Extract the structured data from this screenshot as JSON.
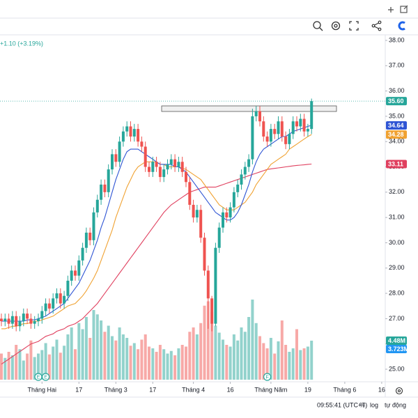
{
  "header": {
    "change": "+1.10 (+3.19%)"
  },
  "footer": {
    "time": "09:55:41 (UTC+7)",
    "percent": "%",
    "log": "log",
    "auto": "tự động"
  },
  "chart_data": {
    "type": "candlestick",
    "colors": {
      "up": "#26a69a",
      "down": "#ef5350"
    },
    "ylim": [
      25,
      38
    ],
    "yticks": [
      {
        "value": 38,
        "label": "38.00"
      },
      {
        "value": 37,
        "label": "37.00"
      },
      {
        "value": 36,
        "label": "36.00"
      },
      {
        "value": 35,
        "label": "35.00"
      },
      {
        "value": 34,
        "label": "34.00"
      },
      {
        "value": 33,
        "label": "33.00"
      },
      {
        "value": 32,
        "label": "32.00"
      },
      {
        "value": 31,
        "label": "31.00"
      },
      {
        "value": 30,
        "label": "30.00"
      },
      {
        "value": 29,
        "label": "29.00"
      },
      {
        "value": 28,
        "label": "28.00"
      },
      {
        "value": 27,
        "label": "27.00"
      },
      {
        "value": 26,
        "label": "26.00"
      },
      {
        "value": 25,
        "label": "25.00"
      }
    ],
    "xticks": [
      {
        "value": 11,
        "label": "Tháng Hai"
      },
      {
        "value": 21,
        "label": "17"
      },
      {
        "value": 31,
        "label": "Tháng 3"
      },
      {
        "value": 41,
        "label": "17"
      },
      {
        "value": 52,
        "label": "Tháng 4"
      },
      {
        "value": 62,
        "label": "16"
      },
      {
        "value": 73,
        "label": "Tháng Năm"
      },
      {
        "value": 83,
        "label": "19"
      },
      {
        "value": 93,
        "label": "Tháng 6"
      },
      {
        "value": 103,
        "label": "16"
      }
    ],
    "candles": {
      "open": [
        27.0,
        26.9,
        27.0,
        26.8,
        27.1,
        26.7,
        26.9,
        27.2,
        27.0,
        26.8,
        26.9,
        27.0,
        27.3,
        27.6,
        27.4,
        27.8,
        28.0,
        27.6,
        27.9,
        28.5,
        28.9,
        28.7,
        29.3,
        29.8,
        30.4,
        30.1,
        31.2,
        31.7,
        32.3,
        32.0,
        32.9,
        33.5,
        33.2,
        34.0,
        34.4,
        34.6,
        34.2,
        34.5,
        34.0,
        33.8,
        33.0,
        32.8,
        33.2,
        33.0,
        32.6,
        32.9,
        33.1,
        33.3,
        33.0,
        33.2,
        32.8,
        32.4,
        31.5,
        31.0,
        31.3,
        30.2,
        28.9,
        27.8,
        26.8,
        29.8,
        30.6,
        31.2,
        31.0,
        31.4,
        32.0,
        32.3,
        32.7,
        33.0,
        33.3,
        35.0,
        35.2,
        34.8,
        34.2,
        34.0,
        34.5,
        34.3,
        34.8,
        34.2,
        33.9,
        34.3,
        34.8,
        34.6,
        34.9,
        34.4,
        34.5
      ],
      "high": [
        27.2,
        27.2,
        27.2,
        27.3,
        27.3,
        27.1,
        27.4,
        27.4,
        27.2,
        27.1,
        27.2,
        27.5,
        27.8,
        27.8,
        28.0,
        28.2,
        28.2,
        28.1,
        28.7,
        29.1,
        29.1,
        29.5,
        30.0,
        30.6,
        30.6,
        31.4,
        31.9,
        32.5,
        32.5,
        33.1,
        33.7,
        33.7,
        34.2,
        34.6,
        34.8,
        34.8,
        34.7,
        34.7,
        34.2,
        34.0,
        33.2,
        33.4,
        33.4,
        33.2,
        33.1,
        33.3,
        33.5,
        33.5,
        33.4,
        33.4,
        33.0,
        32.6,
        31.7,
        31.5,
        31.5,
        30.4,
        29.1,
        27.9,
        30.0,
        30.8,
        31.4,
        31.4,
        31.6,
        32.2,
        32.5,
        32.9,
        33.2,
        33.5,
        35.3,
        35.4,
        35.4,
        35.0,
        34.4,
        34.7,
        34.7,
        35.0,
        35.0,
        34.4,
        34.5,
        35.0,
        35.0,
        35.1,
        35.1,
        34.7,
        35.7
      ],
      "low": [
        26.7,
        26.7,
        26.6,
        26.6,
        26.5,
        26.5,
        26.7,
        26.8,
        26.6,
        26.6,
        26.7,
        26.8,
        27.1,
        27.2,
        27.2,
        27.6,
        27.4,
        27.4,
        27.7,
        28.3,
        28.5,
        28.5,
        29.1,
        29.6,
        29.9,
        29.9,
        31.0,
        31.5,
        31.8,
        31.8,
        32.7,
        33.0,
        33.0,
        33.8,
        34.2,
        34.0,
        34.0,
        33.8,
        33.6,
        32.8,
        32.6,
        32.6,
        32.8,
        32.4,
        32.4,
        32.7,
        32.9,
        32.8,
        32.8,
        32.6,
        32.2,
        31.3,
        30.8,
        30.8,
        30.0,
        28.7,
        26.6,
        26.5,
        26.7,
        29.6,
        30.4,
        30.8,
        30.8,
        31.2,
        31.8,
        32.1,
        32.5,
        32.8,
        33.1,
        34.8,
        34.6,
        34.0,
        33.8,
        33.8,
        34.1,
        34.1,
        34.0,
        33.7,
        33.7,
        34.1,
        34.4,
        34.4,
        34.2,
        34.2,
        34.3
      ],
      "close": [
        26.9,
        27.0,
        26.8,
        27.1,
        26.7,
        26.9,
        27.2,
        27.0,
        26.8,
        26.9,
        27.0,
        27.3,
        27.6,
        27.4,
        27.8,
        28.0,
        27.6,
        27.9,
        28.5,
        28.9,
        28.7,
        29.3,
        29.8,
        30.4,
        30.1,
        31.2,
        31.7,
        32.3,
        32.0,
        32.9,
        33.5,
        33.2,
        34.0,
        34.4,
        34.6,
        34.2,
        34.5,
        34.0,
        33.8,
        33.0,
        32.8,
        33.2,
        33.0,
        32.6,
        32.9,
        33.1,
        33.3,
        33.0,
        33.2,
        32.8,
        32.4,
        31.5,
        31.0,
        31.3,
        30.2,
        28.9,
        27.8,
        26.8,
        29.8,
        30.6,
        31.2,
        31.0,
        31.4,
        32.0,
        32.3,
        32.7,
        33.0,
        33.3,
        35.0,
        35.2,
        34.8,
        34.2,
        34.0,
        34.5,
        34.3,
        34.8,
        34.2,
        33.9,
        34.3,
        34.8,
        34.6,
        34.9,
        34.4,
        34.5,
        35.6
      ],
      "last_label": "35.60"
    },
    "ma_lines": [
      {
        "color": "#2f55d4",
        "last_label": "34.64",
        "values": [
          26.9,
          26.9,
          26.9,
          26.9,
          26.9,
          26.9,
          26.9,
          26.95,
          26.95,
          26.95,
          27.0,
          27.05,
          27.1,
          27.2,
          27.3,
          27.4,
          27.5,
          27.6,
          27.8,
          28.0,
          28.2,
          28.4,
          28.7,
          29.0,
          29.3,
          29.7,
          30.1,
          30.6,
          31.0,
          31.5,
          32.0,
          32.5,
          32.9,
          33.3,
          33.6,
          33.7,
          33.7,
          33.7,
          33.6,
          33.5,
          33.4,
          33.3,
          33.2,
          33.1,
          33.1,
          33.1,
          33.1,
          33.0,
          33.0,
          32.9,
          32.8,
          32.6,
          32.4,
          32.2,
          32.0,
          31.8,
          31.6,
          31.4,
          31.2,
          31.1,
          31.0,
          30.9,
          30.9,
          31.0,
          31.2,
          31.5,
          31.9,
          32.3,
          32.8,
          33.2,
          33.5,
          33.7,
          33.8,
          33.9,
          34.0,
          34.1,
          34.2,
          34.2,
          34.3,
          34.4,
          34.45,
          34.5,
          34.55,
          34.6,
          34.64
        ]
      },
      {
        "color": "#f0a232",
        "last_label": "34.28",
        "values": [
          26.6,
          26.6,
          26.65,
          26.7,
          26.7,
          26.75,
          26.8,
          26.8,
          26.85,
          26.9,
          26.9,
          26.95,
          27.0,
          27.05,
          27.1,
          27.2,
          27.3,
          27.4,
          27.5,
          27.55,
          27.6,
          27.75,
          27.9,
          28.1,
          28.35,
          28.6,
          28.9,
          29.3,
          29.7,
          30.1,
          30.5,
          31.0,
          31.4,
          31.8,
          32.2,
          32.5,
          32.8,
          33.0,
          33.1,
          33.2,
          33.2,
          33.2,
          33.2,
          33.1,
          33.1,
          33.0,
          33.0,
          33.0,
          33.0,
          32.95,
          32.9,
          32.8,
          32.7,
          32.6,
          32.5,
          32.3,
          32.1,
          31.9,
          31.7,
          31.5,
          31.4,
          31.3,
          31.3,
          31.3,
          31.4,
          31.5,
          31.6,
          31.8,
          32.0,
          32.3,
          32.5,
          32.7,
          32.9,
          33.1,
          33.2,
          33.3,
          33.4,
          33.5,
          33.7,
          33.8,
          33.9,
          34.0,
          34.1,
          34.2,
          34.28
        ]
      },
      {
        "color": "#e0405f",
        "last_label": "33.11",
        "values": [
          25.2,
          25.3,
          25.4,
          25.5,
          25.6,
          25.7,
          25.8,
          25.9,
          26.0,
          26.05,
          26.1,
          26.2,
          26.3,
          26.35,
          26.4,
          26.5,
          26.55,
          26.6,
          26.7,
          26.75,
          26.8,
          26.9,
          27.0,
          27.15,
          27.3,
          27.45,
          27.6,
          27.8,
          28.0,
          28.2,
          28.4,
          28.6,
          28.8,
          29.0,
          29.2,
          29.4,
          29.6,
          29.8,
          30.0,
          30.2,
          30.4,
          30.6,
          30.8,
          31.0,
          31.2,
          31.35,
          31.5,
          31.6,
          31.7,
          31.8,
          31.9,
          32.0,
          32.05,
          32.1,
          32.15,
          32.2,
          32.2,
          32.2,
          32.2,
          32.25,
          32.3,
          32.35,
          32.4,
          32.45,
          32.5,
          32.55,
          32.6,
          32.65,
          32.7,
          32.75,
          32.8,
          32.85,
          32.9,
          32.92,
          32.94,
          32.96,
          32.98,
          33.0,
          33.02,
          33.04,
          33.06,
          33.07,
          33.08,
          33.1,
          33.11
        ]
      }
    ],
    "y2lim": [
      0,
      9.2
    ],
    "volume": {
      "axis": "y2",
      "values": [
        3.0,
        2.5,
        3.2,
        2.8,
        4.0,
        3.5,
        2.2,
        3.0,
        4.5,
        2.6,
        3.0,
        3.4,
        4.2,
        2.9,
        3.8,
        4.6,
        3.1,
        3.9,
        5.2,
        6.0,
        3.5,
        6.5,
        5.8,
        7.2,
        4.8,
        8.0,
        7.5,
        6.8,
        5.5,
        6.2,
        5.0,
        4.5,
        6.0,
        5.2,
        4.8,
        3.9,
        4.2,
        3.5,
        4.6,
        5.2,
        3.8,
        3.6,
        3.2,
        4.0,
        3.5,
        3.0,
        3.3,
        2.8,
        3.6,
        4.0,
        3.8,
        5.5,
        6.0,
        5.2,
        6.5,
        8.5,
        9.0,
        7.8,
        6.2,
        5.4,
        4.6,
        4.0,
        3.8,
        5.2,
        4.5,
        6.0,
        5.5,
        7.2,
        9.2,
        6.5,
        5.0,
        4.2,
        3.6,
        4.8,
        3.0,
        4.4,
        6.8,
        4.0,
        3.2,
        3.6,
        5.8,
        3.4,
        3.6,
        3.8,
        4.48
      ],
      "last_label": "4.48M",
      "average": {
        "value": 3.723,
        "label": "3.723M",
        "color": "#2196f3"
      }
    },
    "events": [
      {
        "index": 10,
        "label": "E"
      },
      {
        "index": 12,
        "label": "E"
      },
      {
        "index": 72,
        "label": "F"
      }
    ]
  }
}
